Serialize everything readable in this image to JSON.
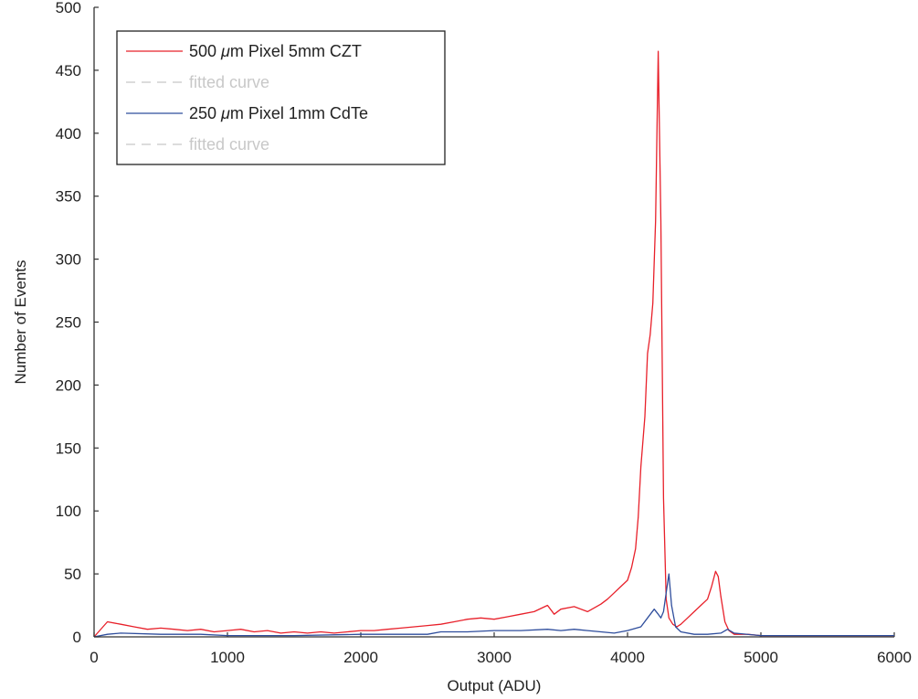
{
  "chart_data": {
    "type": "line",
    "title": "",
    "xlabel": "Output (ADU)",
    "ylabel": "Number of Events",
    "xlim": [
      0,
      6000
    ],
    "ylim": [
      0,
      500
    ],
    "x_ticks": [
      0,
      1000,
      2000,
      3000,
      4000,
      5000,
      6000
    ],
    "y_ticks": [
      0,
      50,
      100,
      150,
      200,
      250,
      300,
      350,
      400,
      450,
      500
    ],
    "grid": false,
    "legend_position": "top-left",
    "series": [
      {
        "name": "500 μm Pixel 5mm CZT",
        "color": "#e8202a",
        "x": [
          0,
          100,
          200,
          300,
          400,
          500,
          600,
          700,
          800,
          900,
          1000,
          1100,
          1200,
          1300,
          1400,
          1500,
          1600,
          1700,
          1800,
          1900,
          2000,
          2100,
          2200,
          2300,
          2400,
          2500,
          2600,
          2700,
          2800,
          2900,
          3000,
          3100,
          3200,
          3300,
          3400,
          3450,
          3500,
          3600,
          3700,
          3800,
          3850,
          3900,
          3950,
          4000,
          4030,
          4060,
          4080,
          4100,
          4130,
          4150,
          4170,
          4190,
          4210,
          4230,
          4250,
          4270,
          4290,
          4310,
          4340,
          4370,
          4400,
          4450,
          4500,
          4550,
          4600,
          4630,
          4660,
          4680,
          4700,
          4730,
          4760,
          4800,
          4900,
          5000,
          5200,
          5400,
          5600,
          5800,
          6000
        ],
        "y": [
          0,
          12,
          10,
          8,
          6,
          7,
          6,
          5,
          6,
          4,
          5,
          6,
          4,
          5,
          3,
          4,
          3,
          4,
          3,
          4,
          5,
          5,
          6,
          7,
          8,
          9,
          10,
          12,
          14,
          15,
          14,
          16,
          18,
          20,
          25,
          18,
          22,
          24,
          20,
          26,
          30,
          35,
          40,
          45,
          55,
          70,
          95,
          135,
          175,
          225,
          240,
          265,
          330,
          465,
          330,
          110,
          30,
          15,
          10,
          8,
          10,
          15,
          20,
          25,
          30,
          40,
          52,
          48,
          32,
          12,
          5,
          2,
          2,
          1,
          1,
          1,
          1,
          1,
          1
        ]
      },
      {
        "name": "250 μm Pixel 1mm CdTe",
        "color": "#2e4d9c",
        "x": [
          0,
          100,
          200,
          500,
          800,
          1000,
          1500,
          2000,
          2500,
          2600,
          2800,
          3000,
          3200,
          3400,
          3500,
          3600,
          3700,
          3800,
          3900,
          4000,
          4100,
          4150,
          4200,
          4230,
          4250,
          4270,
          4290,
          4310,
          4330,
          4360,
          4400,
          4500,
          4600,
          4700,
          4750,
          4800,
          5000,
          5500,
          6000
        ],
        "y": [
          0,
          2,
          3,
          2,
          2,
          1,
          1,
          2,
          2,
          4,
          4,
          5,
          5,
          6,
          5,
          6,
          5,
          4,
          3,
          5,
          8,
          15,
          22,
          18,
          15,
          20,
          35,
          50,
          25,
          8,
          4,
          2,
          2,
          3,
          6,
          3,
          1,
          1,
          1
        ]
      }
    ]
  },
  "legend": {
    "entries": [
      {
        "mu": "μ",
        "prefix": "500 ",
        "suffix": "m Pixel 5mm CZT",
        "color": "#e8202a",
        "dashed": false
      },
      {
        "text": "fitted curve",
        "color": "#c8c8c8",
        "dashed": true
      },
      {
        "mu": "μ",
        "prefix": "250 ",
        "suffix": "m Pixel 1mm CdTe",
        "color": "#2e4d9c",
        "dashed": false
      },
      {
        "text": "fitted curve",
        "color": "#c8c8c8",
        "dashed": true
      }
    ]
  }
}
